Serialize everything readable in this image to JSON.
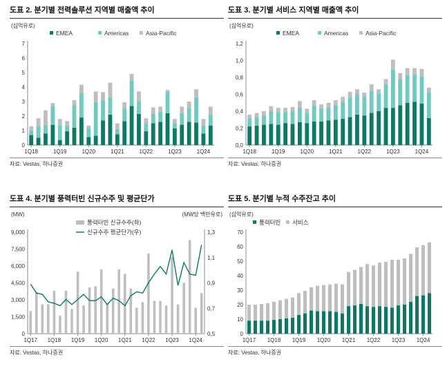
{
  "colors": {
    "green": "#0b7a64",
    "teal": "#6fcbc0",
    "gray": "#bebebe",
    "grid": "#e6e6e6",
    "axis": "#888888"
  },
  "chart_data": [
    {
      "id": "c2",
      "type": "bar",
      "stacked": true,
      "title": "도표 2. 분기별 전력솔루션 지역별 매출액 추이",
      "source": "자료: Vestas, 하나증권",
      "ylabel": "(십억유로)",
      "ylim": [
        0,
        7
      ],
      "yticks": [
        0,
        1,
        2,
        3,
        4,
        5,
        6,
        7
      ],
      "x_tick_labels": [
        "1Q18",
        "1Q19",
        "1Q20",
        "1Q21",
        "1Q22",
        "1Q23",
        "1Q24"
      ],
      "x_tick_every": 4,
      "categories": [
        "1Q18",
        "2Q18",
        "3Q18",
        "4Q18",
        "1Q19",
        "2Q19",
        "3Q19",
        "4Q19",
        "1Q20",
        "2Q20",
        "3Q20",
        "4Q20",
        "1Q21",
        "2Q21",
        "3Q21",
        "4Q21",
        "1Q22",
        "2Q22",
        "3Q22",
        "4Q22",
        "1Q23",
        "2Q23",
        "3Q23",
        "4Q23",
        "1Q24",
        "2Q24"
      ],
      "legend": [
        "EMEA",
        "Americas",
        "Asia-Pacific"
      ],
      "series": [
        {
          "name": "EMEA",
          "color": "#0b7a64",
          "values": [
            0.7,
            0.5,
            0.8,
            1.4,
            0.35,
            0.95,
            1.2,
            1.9,
            0.55,
            0.65,
            1.7,
            2.1,
            0.75,
            1.65,
            2.7,
            2.15,
            0.95,
            1.5,
            1.6,
            2.2,
            1.15,
            1.4,
            1.6,
            1.55,
            0.8,
            1.35
          ]
        },
        {
          "name": "Americas",
          "color": "#6fcbc0",
          "values": [
            0.3,
            0.8,
            0.6,
            1.3,
            1.0,
            0.4,
            1.55,
            1.7,
            0.6,
            2.3,
            1.4,
            1.2,
            0.35,
            0.85,
            1.75,
            0.85,
            0.55,
            0.65,
            0.7,
            1.45,
            0.35,
            0.8,
            0.95,
            1.75,
            0.55,
            0.75
          ]
        },
        {
          "name": "Asia-Pacific",
          "color": "#bebebe",
          "values": [
            0.3,
            0.55,
            1.0,
            0.2,
            0.45,
            0.3,
            0.35,
            0.55,
            0.2,
            0.75,
            0.55,
            1.0,
            0.4,
            0.45,
            0.45,
            0.7,
            0.35,
            0.45,
            0.35,
            0.15,
            0.3,
            0.45,
            0.45,
            0.55,
            0.45,
            0.55
          ]
        }
      ]
    },
    {
      "id": "c3",
      "type": "bar",
      "stacked": true,
      "title": "도표 3. 분기별 서비스 지역별 매출액 추이",
      "source": "자료: Vestas, 하나증권",
      "ylabel": "(십억유로)",
      "ylim": [
        0,
        1.2
      ],
      "yticks": [
        0,
        0.2,
        0.4,
        0.6,
        0.8,
        1.0,
        1.2
      ],
      "ytick_labels": [
        "0,0",
        "0,2",
        "0,4",
        "0,6",
        "0,8",
        "1,0",
        "1,2"
      ],
      "x_tick_labels": [
        "1Q18",
        "1Q19",
        "1Q20",
        "1Q21",
        "1Q22",
        "1Q23",
        "1Q24"
      ],
      "x_tick_every": 4,
      "categories": [
        "1Q18",
        "2Q18",
        "3Q18",
        "4Q18",
        "1Q19",
        "2Q19",
        "3Q19",
        "4Q19",
        "1Q20",
        "2Q20",
        "3Q20",
        "4Q20",
        "1Q21",
        "2Q21",
        "3Q21",
        "4Q21",
        "1Q22",
        "2Q22",
        "3Q22",
        "4Q22",
        "1Q23",
        "2Q23",
        "3Q23",
        "4Q23",
        "1Q24",
        "2Q24"
      ],
      "legend": [
        "EMEA",
        "Americas",
        "Asia-Pacific"
      ],
      "series": [
        {
          "name": "EMEA",
          "color": "#0b7a64",
          "values": [
            0.22,
            0.23,
            0.24,
            0.25,
            0.24,
            0.26,
            0.25,
            0.27,
            0.26,
            0.28,
            0.28,
            0.29,
            0.3,
            0.31,
            0.33,
            0.36,
            0.35,
            0.38,
            0.4,
            0.44,
            0.44,
            0.47,
            0.5,
            0.51,
            0.49,
            0.32
          ]
        },
        {
          "name": "Americas",
          "color": "#6fcbc0",
          "values": [
            0.1,
            0.1,
            0.11,
            0.15,
            0.15,
            0.13,
            0.15,
            0.17,
            0.12,
            0.19,
            0.15,
            0.15,
            0.17,
            0.2,
            0.23,
            0.24,
            0.22,
            0.26,
            0.21,
            0.28,
            0.45,
            0.31,
            0.33,
            0.32,
            0.32,
            0.3
          ]
        },
        {
          "name": "Asia-Pacific",
          "color": "#bebebe",
          "values": [
            0.04,
            0.05,
            0.05,
            0.06,
            0.05,
            0.05,
            0.05,
            0.08,
            0.05,
            0.06,
            0.05,
            0.06,
            0.06,
            0.06,
            0.07,
            0.06,
            0.05,
            0.08,
            0.05,
            0.06,
            0.12,
            0.07,
            0.08,
            0.08,
            0.09,
            0.06
          ]
        }
      ]
    },
    {
      "id": "c4",
      "type": "bar+line",
      "title": "도표 4. 분기별 풍력터빈 신규수주 및 평균단가",
      "source": "자료: Vestas, 하나증권",
      "ylabel": "(MW)",
      "ylabel_right": "(MW당 백만유로)",
      "ylim": [
        0,
        9000
      ],
      "yticks": [
        0,
        1500,
        3000,
        4500,
        6000,
        7500,
        9000
      ],
      "ytick_labels": [
        "0",
        "1,500",
        "3,000",
        "4,500",
        "6,000",
        "7,500",
        "9,000"
      ],
      "ylim_right": [
        0.5,
        1.3
      ],
      "yticks_right": [
        0.5,
        0.7,
        0.9,
        1.1,
        1.3
      ],
      "ytick_labels_right": [
        "0,5",
        "0,7",
        "0,9",
        "1,1",
        "1,3"
      ],
      "x_tick_labels": [
        "1Q17",
        "1Q18",
        "1Q19",
        "1Q20",
        "1Q21",
        "1Q22",
        "1Q23",
        "1Q24"
      ],
      "x_tick_every": 4,
      "categories": [
        "1Q17",
        "2Q17",
        "3Q17",
        "4Q17",
        "1Q18",
        "2Q18",
        "3Q18",
        "4Q18",
        "1Q19",
        "2Q19",
        "3Q19",
        "4Q19",
        "1Q20",
        "2Q20",
        "3Q20",
        "4Q20",
        "1Q21",
        "2Q21",
        "3Q21",
        "4Q21",
        "1Q22",
        "2Q22",
        "3Q22",
        "4Q22",
        "1Q23",
        "2Q23",
        "3Q23",
        "4Q23",
        "1Q24",
        "2Q24"
      ],
      "legend": [
        "풍력터빈 신규수주(좌)",
        "신규수주 평균단가(우)"
      ],
      "bars": {
        "name": "풍력터빈 신규수주(좌)",
        "color": "#bebebe",
        "values": [
          2000,
          3700,
          2600,
          2600,
          3800,
          1600,
          3800,
          2200,
          5500,
          2500,
          4100,
          4200,
          5700,
          2700,
          4000,
          5700,
          5300,
          4000,
          2300,
          2800,
          7100,
          2900,
          2900,
          2500,
          6800,
          2600,
          4500,
          8300,
          2300,
          3600
        ]
      },
      "line": {
        "name": "신규수주 평균단가(우)",
        "color": "#0b7a64",
        "values": [
          0.89,
          0.82,
          0.81,
          0.75,
          0.74,
          0.72,
          0.77,
          0.73,
          0.77,
          0.81,
          0.76,
          0.76,
          0.79,
          0.73,
          0.78,
          0.76,
          0.72,
          0.8,
          0.83,
          0.82,
          0.9,
          0.97,
          1.03,
          0.97,
          1.16,
          0.88,
          1.06,
          0.97,
          0.96,
          1.2
        ]
      }
    },
    {
      "id": "c5",
      "type": "bar",
      "stacked": true,
      "title": "도표 5. 분기별 누적 수주잔고 추이",
      "source": "자료: Vestas, 하나증권",
      "ylabel": "(십억유로)",
      "ylim": [
        0,
        70
      ],
      "yticks": [
        0,
        10,
        20,
        30,
        40,
        50,
        60,
        70
      ],
      "x_tick_labels": [
        "1Q17",
        "1Q18",
        "1Q19",
        "1Q20",
        "1Q21",
        "1Q22",
        "1Q23",
        "1Q24"
      ],
      "x_tick_every": 4,
      "categories": [
        "1Q17",
        "2Q17",
        "3Q17",
        "4Q17",
        "1Q18",
        "2Q18",
        "3Q18",
        "4Q18",
        "1Q19",
        "2Q19",
        "3Q19",
        "4Q19",
        "1Q20",
        "2Q20",
        "3Q20",
        "4Q20",
        "1Q21",
        "2Q21",
        "3Q21",
        "4Q21",
        "1Q22",
        "2Q22",
        "3Q22",
        "4Q22",
        "1Q23",
        "2Q23",
        "3Q23",
        "4Q23",
        "1Q24",
        "2Q24"
      ],
      "legend": [
        "풍력터빈",
        "서비스"
      ],
      "series": [
        {
          "name": "풍력터빈",
          "color": "#0b7a64",
          "values": [
            9,
            9,
            9,
            9,
            9.5,
            10,
            10.5,
            11,
            13,
            14,
            16,
            15.5,
            15.5,
            15.5,
            15,
            14,
            19,
            19.5,
            20.5,
            19,
            18.5,
            19,
            18.5,
            18,
            19.5,
            20,
            22,
            26,
            26.5,
            28
          ]
        },
        {
          "name": "서비스",
          "color": "#bebebe",
          "values": [
            11,
            11,
            11.5,
            12,
            12.5,
            13,
            13.5,
            14,
            15,
            15.5,
            16,
            17.5,
            18,
            18.5,
            19.5,
            20,
            23.5,
            24.5,
            25.5,
            29,
            28.5,
            30,
            31,
            33,
            31.5,
            32,
            33,
            33.5,
            34.5,
            35
          ]
        }
      ]
    }
  ]
}
